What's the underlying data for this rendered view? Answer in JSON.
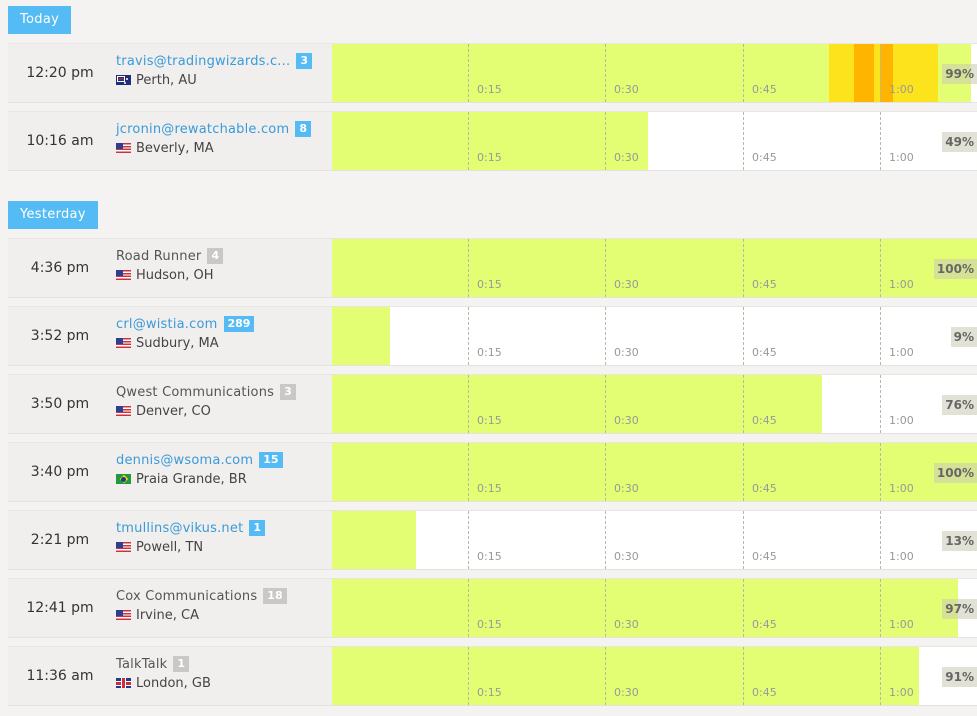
{
  "colors": {
    "accent": "#54bbf5",
    "fill": "#e4fe74",
    "heat_yellow": "#fde31c",
    "heat_orange": "#ffb400"
  },
  "ticks": [
    "0:15",
    "0:30",
    "0:45",
    "1:00"
  ],
  "sections": [
    {
      "label": "Today",
      "sessions": [
        {
          "time": "12:20 pm",
          "name": "travis@tradingwizards.c...",
          "is_email": true,
          "count": "3",
          "flag": "au",
          "location": "Perth, AU",
          "percent": 99,
          "percent_label": "99%",
          "heat": [
            {
              "start": 0.77,
              "end": 0.94,
              "color": "#fde31c"
            },
            {
              "start": 0.81,
              "end": 0.84,
              "color": "#ffb400"
            },
            {
              "start": 0.85,
              "end": 0.87,
              "color": "#ffb400"
            }
          ]
        },
        {
          "time": "10:16 am",
          "name": "jcronin@rewatchable.com",
          "is_email": true,
          "count": "8",
          "flag": "us",
          "location": "Beverly, MA",
          "percent": 49,
          "percent_label": "49%",
          "heat": []
        }
      ]
    },
    {
      "label": "Yesterday",
      "sessions": [
        {
          "time": "4:36 pm",
          "name": "Road Runner",
          "is_email": false,
          "count": "4",
          "flag": "us",
          "location": "Hudson, OH",
          "percent": 100,
          "percent_label": "100%",
          "heat": []
        },
        {
          "time": "3:52 pm",
          "name": "crl@wistia.com",
          "is_email": true,
          "count": "289",
          "flag": "us",
          "location": "Sudbury, MA",
          "percent": 9,
          "percent_label": "9%",
          "heat": []
        },
        {
          "time": "3:50 pm",
          "name": "Qwest Communications",
          "is_email": false,
          "count": "3",
          "flag": "us",
          "location": "Denver, CO",
          "percent": 76,
          "percent_label": "76%",
          "heat": []
        },
        {
          "time": "3:40 pm",
          "name": "dennis@wsoma.com",
          "is_email": true,
          "count": "15",
          "flag": "br",
          "location": "Praia Grande, BR",
          "percent": 100,
          "percent_label": "100%",
          "heat": []
        },
        {
          "time": "2:21 pm",
          "name": "tmullins@vikus.net",
          "is_email": true,
          "count": "1",
          "flag": "us",
          "location": "Powell, TN",
          "percent": 13,
          "percent_label": "13%",
          "heat": []
        },
        {
          "time": "12:41 pm",
          "name": "Cox Communications",
          "is_email": false,
          "count": "18",
          "flag": "us",
          "location": "Irvine, CA",
          "percent": 97,
          "percent_label": "97%",
          "heat": []
        },
        {
          "time": "11:36 am",
          "name": "TalkTalk",
          "is_email": false,
          "count": "1",
          "flag": "gb",
          "location": "London, GB",
          "percent": 91,
          "percent_label": "91%",
          "heat": []
        }
      ]
    }
  ]
}
